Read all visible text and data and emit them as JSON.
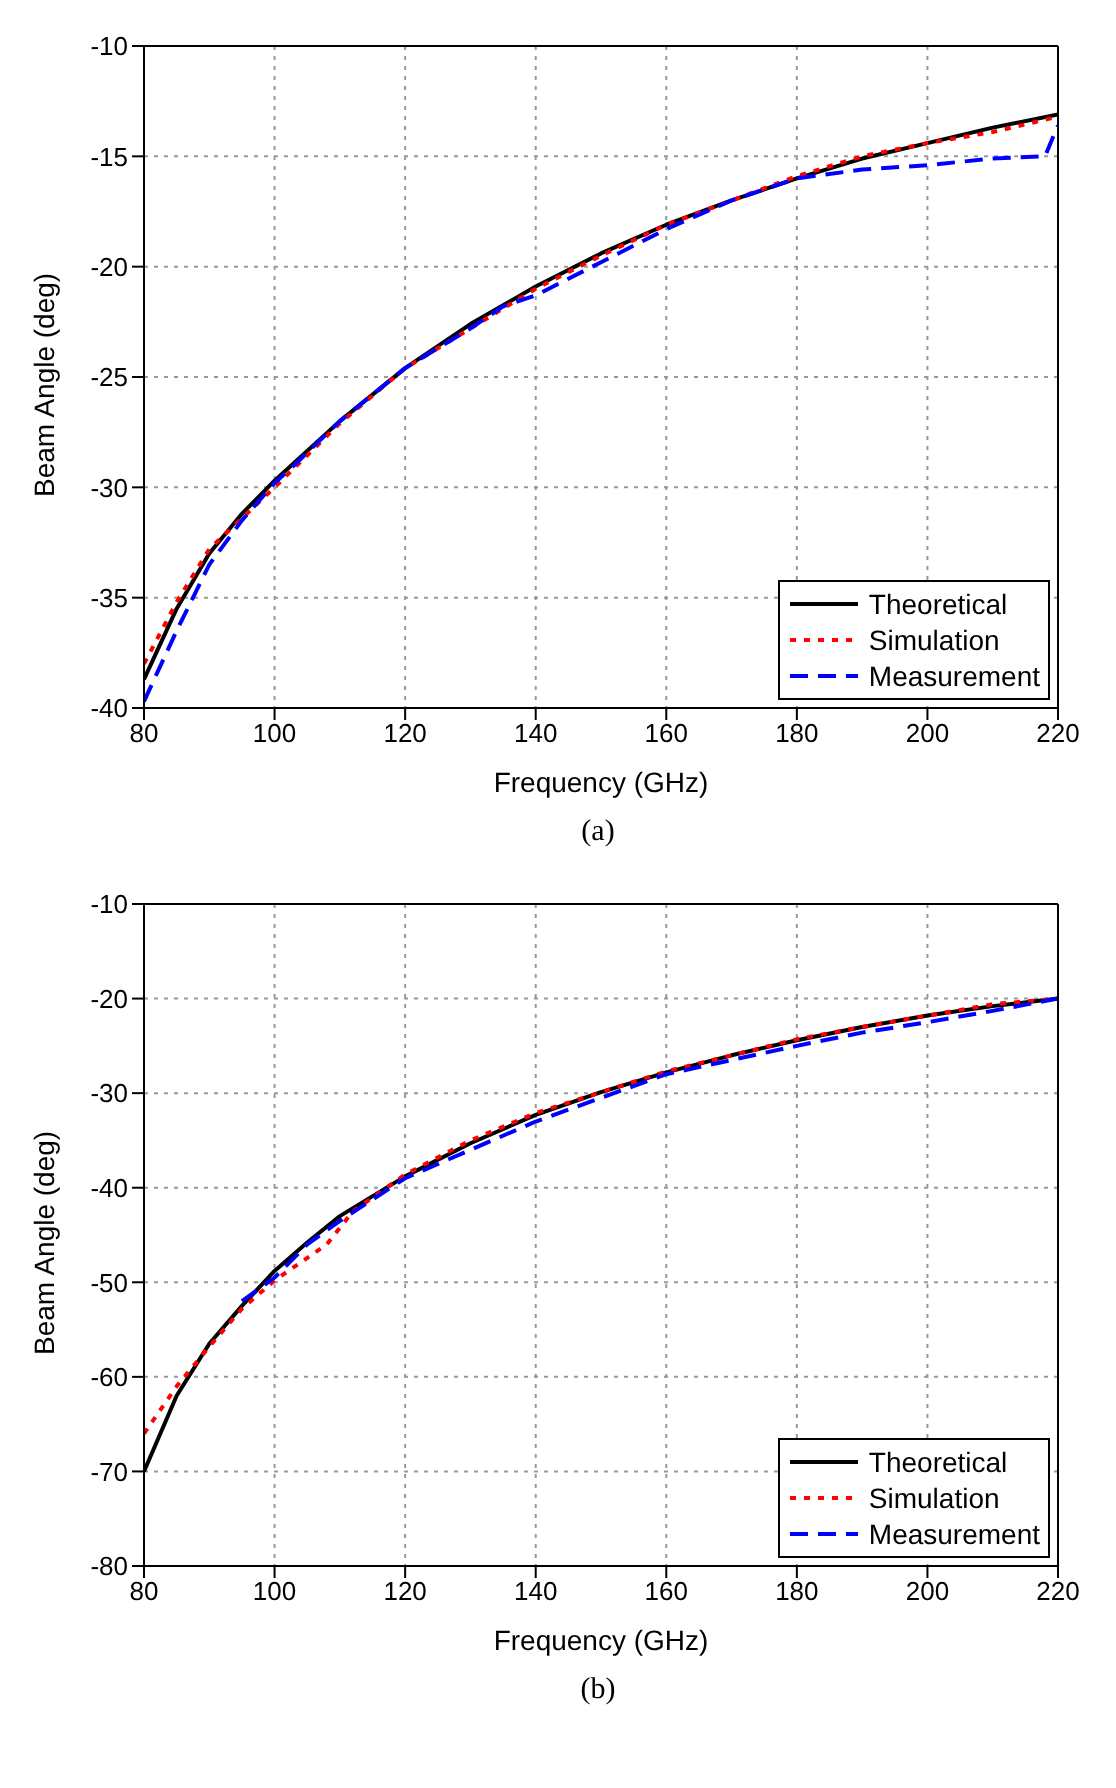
{
  "chart_data": [
    {
      "type": "line",
      "xlabel": "Frequency (GHz)",
      "ylabel": "Beam Angle (deg)",
      "xlim": [
        80,
        220
      ],
      "xticks": [
        80,
        100,
        120,
        140,
        160,
        180,
        200,
        220
      ],
      "ylim": [
        -40,
        -10
      ],
      "yticks": [
        -40,
        -35,
        -30,
        -25,
        -20,
        -15,
        -10
      ],
      "grid": true,
      "legend": "bottom right",
      "annotations": [
        "(a)"
      ],
      "series": [
        {
          "name": "Theoretical",
          "color": "#000000",
          "line_style": "solid",
          "x": [
            80,
            85,
            90,
            95,
            100,
            110,
            120,
            130,
            140,
            150,
            160,
            170,
            180,
            190,
            200,
            210,
            220
          ],
          "values": [
            -38.7,
            -35.5,
            -33,
            -31.2,
            -29.7,
            -27,
            -24.6,
            -22.6,
            -20.9,
            -19.4,
            -18.1,
            -17,
            -16,
            -15.1,
            -14.4,
            -13.7,
            -13.1
          ]
        },
        {
          "name": "Simulation",
          "color": "#ff0000",
          "line_style": "dotted",
          "x": [
            80,
            85,
            90,
            100,
            110,
            120,
            130,
            140,
            150,
            160,
            170,
            180,
            190,
            200,
            210,
            220
          ],
          "values": [
            -38,
            -35.2,
            -32.8,
            -30,
            -27.1,
            -24.6,
            -22.8,
            -21,
            -19.5,
            -18.1,
            -17,
            -15.9,
            -15,
            -14.4,
            -13.9,
            -13.2
          ]
        },
        {
          "name": "Measurement",
          "color": "#0000ff",
          "line_style": "dashed",
          "x": [
            80,
            85,
            90,
            95,
            100,
            103,
            110,
            120,
            130,
            135,
            140,
            150,
            160,
            170,
            180,
            190,
            200,
            210,
            218,
            220
          ],
          "values": [
            -39.7,
            -36.5,
            -33.5,
            -31.5,
            -29.8,
            -29,
            -27,
            -24.6,
            -22.8,
            -21.8,
            -21.3,
            -19.8,
            -18.3,
            -17,
            -16,
            -15.6,
            -15.4,
            -15.1,
            -15,
            -13.6
          ]
        }
      ]
    },
    {
      "type": "line",
      "xlabel": "Frequency (GHz)",
      "ylabel": "Beam Angle (deg)",
      "xlim": [
        80,
        220
      ],
      "xticks": [
        80,
        100,
        120,
        140,
        160,
        180,
        200,
        220
      ],
      "ylim": [
        -80,
        -10
      ],
      "yticks": [
        -80,
        -70,
        -60,
        -50,
        -40,
        -30,
        -20,
        -10
      ],
      "grid": true,
      "legend": "bottom right",
      "annotations": [
        "(b)"
      ],
      "series": [
        {
          "name": "Theoretical",
          "color": "#000000",
          "line_style": "solid",
          "x": [
            80,
            85,
            90,
            95,
            100,
            105,
            110,
            120,
            130,
            140,
            150,
            160,
            170,
            180,
            190,
            200,
            210,
            220
          ],
          "values": [
            -70,
            -62,
            -56.5,
            -52.5,
            -48.8,
            -45.8,
            -43,
            -38.8,
            -35.3,
            -32.3,
            -29.9,
            -27.8,
            -26,
            -24.4,
            -23,
            -21.8,
            -20.8,
            -20
          ]
        },
        {
          "name": "Simulation",
          "color": "#ff0000",
          "line_style": "dotted",
          "x": [
            80,
            85,
            90,
            95,
            100,
            108,
            112,
            120,
            130,
            140,
            150,
            160,
            170,
            180,
            190,
            200,
            210,
            220
          ],
          "values": [
            -66,
            -61,
            -56.8,
            -52.8,
            -49.8,
            -46,
            -42.5,
            -38.6,
            -35,
            -32.1,
            -29.9,
            -27.7,
            -26,
            -24.3,
            -23,
            -21.8,
            -20.6,
            -20
          ]
        },
        {
          "name": "Measurement",
          "color": "#0000ff",
          "line_style": "dashed",
          "x": [
            95,
            100,
            105,
            110,
            120,
            130,
            140,
            150,
            160,
            170,
            180,
            190,
            200,
            210,
            220
          ],
          "values": [
            -52,
            -49.5,
            -46,
            -43.5,
            -39,
            -36,
            -33,
            -30.5,
            -28,
            -26.5,
            -25,
            -23.6,
            -22.5,
            -21.3,
            -20
          ]
        }
      ]
    }
  ]
}
